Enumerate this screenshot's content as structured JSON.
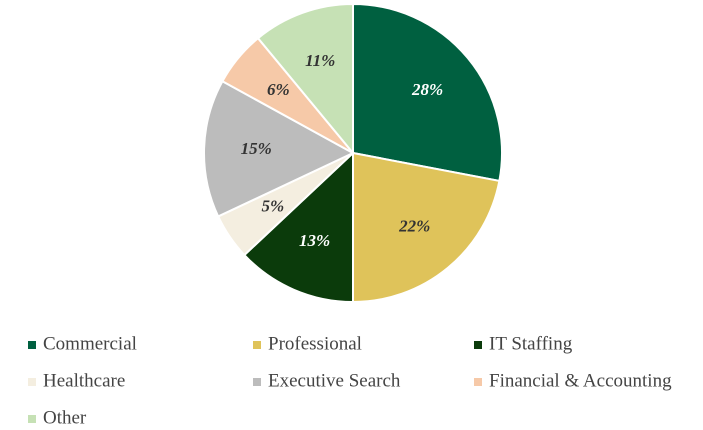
{
  "chart_data": {
    "type": "pie",
    "categories": [
      "Commercial",
      "Professional",
      "IT Staffing",
      "Healthcare",
      "Executive Search",
      "Financial & Accounting",
      "Other"
    ],
    "values": [
      28,
      22,
      13,
      5,
      15,
      6,
      11
    ],
    "value_labels": [
      "28%",
      "22%",
      "13%",
      "5%",
      "15%",
      "6%",
      "11%"
    ],
    "colors": [
      "#006040",
      "#dfc35a",
      "#0b3b0b",
      "#f4eee0",
      "#bcbcbc",
      "#f6c9a8",
      "#c6e1b5"
    ]
  }
}
